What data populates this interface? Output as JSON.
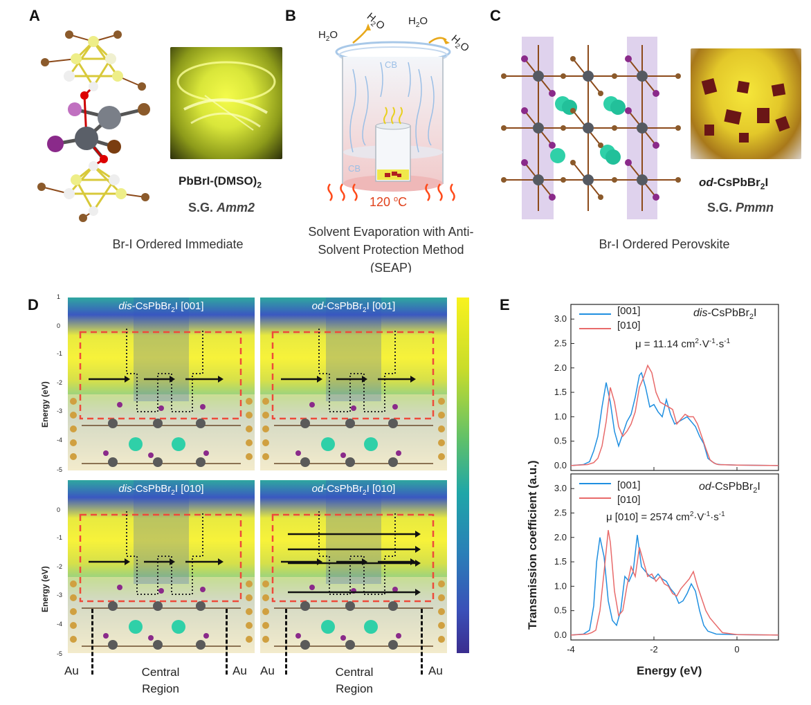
{
  "panelA": {
    "label": "A",
    "compound": "PbBrI-(DMSO)",
    "compound_sub": "2",
    "sg_prefix": "S.G. ",
    "sg": "Amm2",
    "caption": "Br-I Ordered Immediate"
  },
  "panelB": {
    "label": "B",
    "h2o": "H",
    "h2o_sub": "2",
    "h2o_tail": "O",
    "cb": "CB",
    "temp_value": "120 ",
    "temp_sup": "o",
    "temp_unit": "C",
    "caption_line1": "Solvent Evaporation with Anti-",
    "caption_line2": "Solvent Protection Method",
    "caption_line3": "(SEAP)"
  },
  "panelC": {
    "label": "C",
    "compound_prefix": "od",
    "compound_main": "-CsPbBr",
    "compound_sub": "2",
    "compound_tail": "I",
    "sg_prefix": "S.G. ",
    "sg": "Pmmn",
    "caption": "Br-I Ordered Perovskite"
  },
  "panelD": {
    "label": "D",
    "ylabel": "Energy (eV)",
    "yticks": [
      "1",
      "0",
      "-1",
      "-2",
      "-3",
      "-4",
      "-5"
    ],
    "maps": [
      {
        "prefix": "dis",
        "main": "-CsPbBr",
        "sub": "2",
        "tail": "I [001]"
      },
      {
        "prefix": "od",
        "main": "-CsPbBr",
        "sub": "2",
        "tail": "I [001]"
      },
      {
        "prefix": "dis",
        "main": "-CsPbBr",
        "sub": "2",
        "tail": "I [010]"
      },
      {
        "prefix": "od",
        "main": "-CsPbBr",
        "sub": "2",
        "tail": "I [010]"
      }
    ],
    "au": "Au",
    "central1": "Central",
    "central2": "Region"
  },
  "panelE": {
    "label": "E",
    "ylabel": "Transmission coefficient (a.u.)",
    "xlabel": "Energy (eV)",
    "xticks": [
      "-4",
      "-2",
      "0"
    ],
    "yticks": [
      "0.0",
      "0.5",
      "1.0",
      "1.5",
      "2.0",
      "2.5",
      "3.0"
    ],
    "top": {
      "legend": [
        "[001]",
        "[010]"
      ],
      "title_prefix": "dis",
      "title_main": "-CsPbBr",
      "title_sub": "2",
      "title_tail": "I",
      "mu_text": "μ = 11.14 cm",
      "mu_unit": "·V",
      "mu_unit2": "·s"
    },
    "bottom": {
      "legend": [
        "[001]",
        "[010]"
      ],
      "title_prefix": "od",
      "title_main": "-CsPbBr",
      "title_sub": "2",
      "title_tail": "I",
      "mu_text": "μ [010] = 2574 cm",
      "mu_unit": "·V",
      "mu_unit2": "·s"
    },
    "sup2": "2",
    "supm1": "-1"
  },
  "chart_data": [
    {
      "type": "line",
      "xlabel": "Energy (eV)",
      "ylabel": "Transmission coefficient (a.u.)",
      "xlim": [
        -4,
        1
      ],
      "ylim": [
        -0.1,
        3.3
      ],
      "series": [
        {
          "name": "[001]",
          "color": "#1f8fe0",
          "x": [
            -4.0,
            -3.7,
            -3.55,
            -3.45,
            -3.35,
            -3.25,
            -3.15,
            -3.05,
            -2.95,
            -2.85,
            -2.75,
            -2.65,
            -2.55,
            -2.45,
            -2.35,
            -2.3,
            -2.2,
            -2.1,
            -2.0,
            -1.9,
            -1.8,
            -1.7,
            -1.6,
            -1.5,
            -1.4,
            -1.3,
            -1.2,
            -1.1,
            -1.0,
            -0.9,
            -0.8,
            -0.7,
            -0.6,
            -0.5,
            -0.4,
            0.0,
            1.0
          ],
          "y": [
            0.0,
            0.02,
            0.08,
            0.3,
            0.6,
            1.2,
            1.7,
            1.3,
            0.7,
            0.4,
            0.65,
            0.9,
            1.05,
            1.4,
            1.85,
            1.9,
            1.6,
            1.2,
            1.25,
            1.1,
            1.0,
            1.35,
            1.05,
            0.85,
            0.9,
            0.95,
            1.0,
            0.9,
            0.8,
            0.6,
            0.45,
            0.15,
            0.08,
            0.03,
            0.02,
            0.01,
            0.0
          ]
        },
        {
          "name": "[010]",
          "color": "#e86a6a",
          "x": [
            -4.0,
            -3.6,
            -3.45,
            -3.35,
            -3.25,
            -3.15,
            -3.05,
            -2.95,
            -2.85,
            -2.75,
            -2.65,
            -2.55,
            -2.45,
            -2.35,
            -2.25,
            -2.15,
            -2.05,
            -1.95,
            -1.85,
            -1.75,
            -1.65,
            -1.55,
            -1.45,
            -1.35,
            -1.25,
            -1.15,
            -1.05,
            -0.95,
            -0.85,
            -0.75,
            -0.65,
            -0.55,
            -0.45,
            0.0,
            1.0
          ],
          "y": [
            0.0,
            0.02,
            0.06,
            0.15,
            0.4,
            0.9,
            1.6,
            1.3,
            0.8,
            0.6,
            0.7,
            0.85,
            1.1,
            1.6,
            1.8,
            2.05,
            1.9,
            1.5,
            1.3,
            1.25,
            1.2,
            1.15,
            0.85,
            0.95,
            1.05,
            1.0,
            1.0,
            0.85,
            0.6,
            0.35,
            0.12,
            0.05,
            0.02,
            0.01,
            0.0
          ]
        }
      ]
    },
    {
      "type": "line",
      "xlabel": "Energy (eV)",
      "ylabel": "Transmission coefficient (a.u.)",
      "xlim": [
        -4,
        1
      ],
      "ylim": [
        -0.1,
        3.3
      ],
      "series": [
        {
          "name": "[001]",
          "color": "#1f8fe0",
          "x": [
            -4.0,
            -3.7,
            -3.55,
            -3.45,
            -3.38,
            -3.3,
            -3.2,
            -3.1,
            -3.0,
            -2.9,
            -2.8,
            -2.7,
            -2.6,
            -2.5,
            -2.4,
            -2.3,
            -2.2,
            -2.1,
            -2.0,
            -1.9,
            -1.8,
            -1.7,
            -1.6,
            -1.5,
            -1.4,
            -1.3,
            -1.2,
            -1.1,
            -1.0,
            -0.9,
            -0.8,
            -0.7,
            -0.5,
            0.0,
            1.0
          ],
          "y": [
            0.0,
            0.02,
            0.1,
            0.6,
            1.5,
            2.0,
            1.6,
            0.7,
            0.3,
            0.2,
            0.5,
            1.2,
            1.1,
            1.3,
            2.05,
            1.4,
            1.3,
            1.2,
            1.15,
            1.25,
            1.15,
            1.1,
            0.95,
            0.85,
            0.65,
            0.7,
            0.85,
            1.05,
            0.9,
            0.5,
            0.2,
            0.08,
            0.02,
            0.01,
            0.0
          ]
        },
        {
          "name": "[010]",
          "color": "#e86a6a",
          "x": [
            -4.0,
            -3.6,
            -3.5,
            -3.4,
            -3.3,
            -3.2,
            -3.1,
            -3.05,
            -2.95,
            -2.85,
            -2.75,
            -2.65,
            -2.55,
            -2.45,
            -2.35,
            -2.25,
            -2.15,
            -2.05,
            -1.95,
            -1.85,
            -1.75,
            -1.65,
            -1.55,
            -1.45,
            -1.35,
            -1.25,
            -1.15,
            -1.05,
            -0.95,
            -0.85,
            -0.75,
            -0.65,
            -0.55,
            -0.45,
            -0.35,
            0.0,
            1.0
          ],
          "y": [
            0.0,
            0.02,
            0.05,
            0.1,
            0.5,
            1.3,
            2.15,
            1.9,
            0.9,
            0.4,
            0.5,
            1.0,
            1.4,
            1.2,
            1.8,
            1.5,
            1.2,
            1.25,
            1.1,
            1.2,
            1.05,
            1.0,
            0.85,
            0.8,
            0.95,
            1.05,
            1.15,
            1.3,
            1.0,
            0.75,
            0.5,
            0.35,
            0.25,
            0.15,
            0.05,
            0.01,
            0.0
          ]
        }
      ]
    }
  ]
}
